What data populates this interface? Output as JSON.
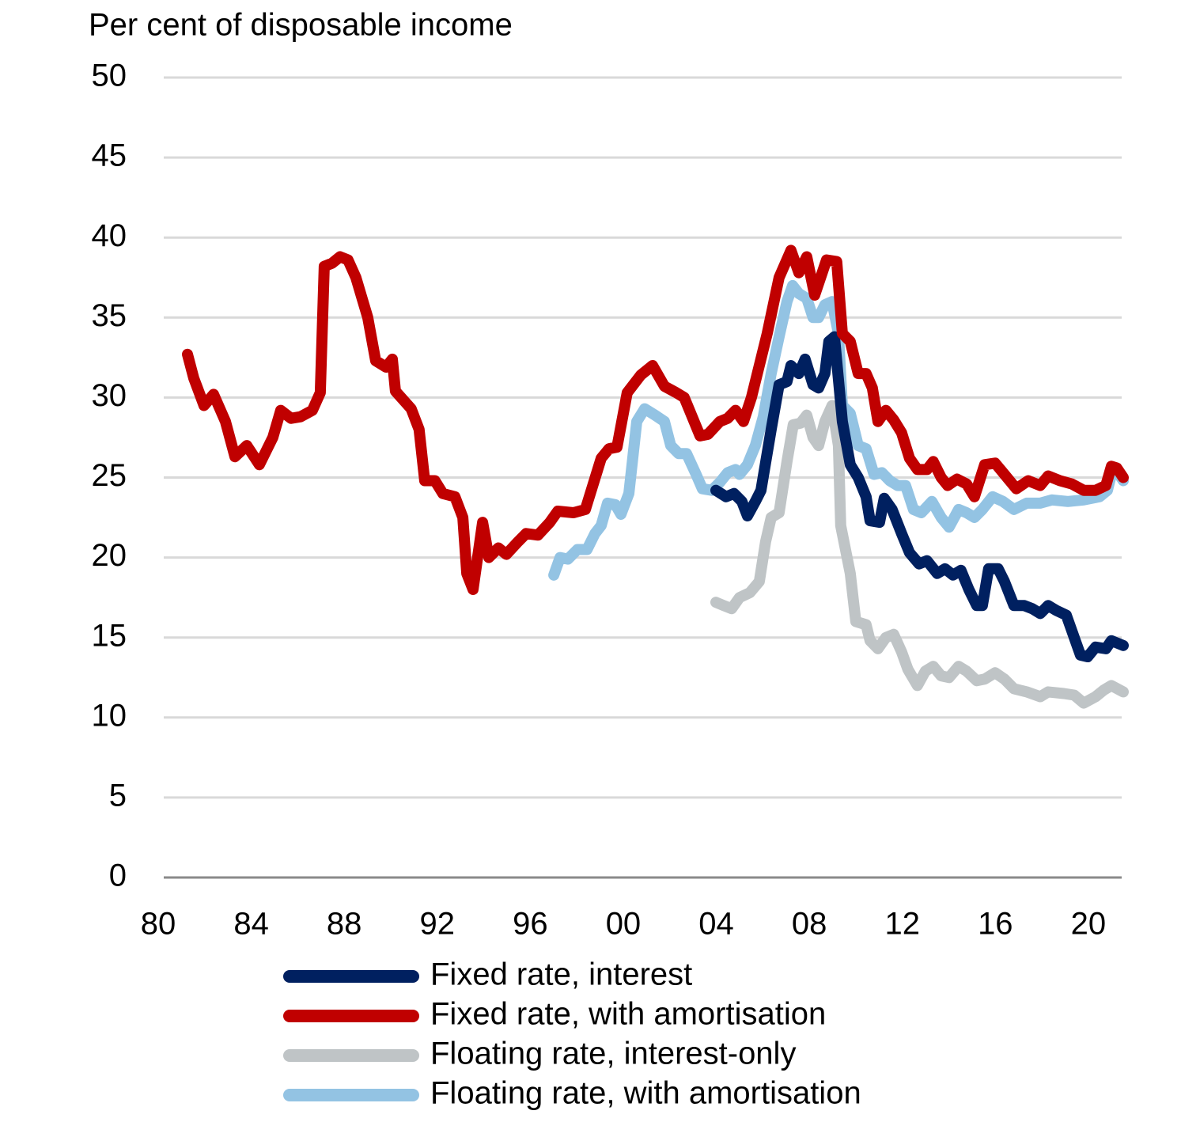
{
  "chart_data": {
    "type": "line",
    "y_axis_label": "Per cent of disposable income",
    "xlim": [
      1980,
      2021.5
    ],
    "ylim": [
      0,
      50
    ],
    "yticks": [
      0,
      5,
      10,
      15,
      20,
      25,
      30,
      35,
      40,
      45,
      50
    ],
    "xticks": [
      {
        "value": 1980,
        "label": "80"
      },
      {
        "value": 1984,
        "label": "84"
      },
      {
        "value": 1988,
        "label": "88"
      },
      {
        "value": 1992,
        "label": "92"
      },
      {
        "value": 1996,
        "label": "96"
      },
      {
        "value": 2000,
        "label": "00"
      },
      {
        "value": 2004,
        "label": "04"
      },
      {
        "value": 2008,
        "label": "08"
      },
      {
        "value": 2012,
        "label": "12"
      },
      {
        "value": 2016,
        "label": "16"
      },
      {
        "value": 2020,
        "label": "20"
      }
    ],
    "grid": true,
    "legend": "bottom",
    "series": [
      {
        "name": "Fixed rate, interest",
        "color": "#002060",
        "x": [
          2003.98,
          2004.42,
          2004.76,
          2005.1,
          2005.34,
          2005.68,
          2005.92,
          2006.36,
          2006.7,
          2007.04,
          2007.21,
          2007.55,
          2007.82,
          2008.16,
          2008.4,
          2008.67,
          2008.84,
          2009.08,
          2009.42,
          2009.76,
          2010.1,
          2010.44,
          2010.61,
          2011.02,
          2011.22,
          2011.56,
          2011.97,
          2012.31,
          2012.72,
          2013.06,
          2013.5,
          2013.84,
          2014.18,
          2014.52,
          2014.86,
          2015.2,
          2015.44,
          2015.71,
          2016.12,
          2016.39,
          2016.8,
          2017.24,
          2017.59,
          2017.93,
          2018.27,
          2018.61,
          2019.05,
          2019.39,
          2019.66,
          2019.97,
          2020.31,
          2020.75,
          2020.99,
          2021.5
        ],
        "values": [
          24.2,
          23.8,
          24.0,
          23.5,
          22.6,
          23.5,
          24.2,
          28.0,
          30.8,
          31.0,
          32.0,
          31.5,
          32.4,
          30.8,
          30.6,
          31.5,
          33.5,
          33.8,
          28.5,
          25.8,
          25.0,
          23.8,
          22.3,
          22.2,
          23.7,
          23.0,
          21.5,
          20.3,
          19.6,
          19.8,
          19.0,
          19.3,
          18.9,
          19.2,
          18.0,
          17.0,
          17.0,
          19.3,
          19.3,
          18.5,
          17.0,
          17.0,
          16.8,
          16.5,
          17.0,
          16.7,
          16.4,
          15.0,
          13.9,
          13.8,
          14.4,
          14.3,
          14.8,
          14.5
        ]
      },
      {
        "name": "Fixed rate, with amortisation",
        "color": "#c00000",
        "x": [
          1981.26,
          1981.53,
          1981.97,
          1982.38,
          1982.89,
          1983.3,
          1983.81,
          1984.35,
          1984.93,
          1985.27,
          1985.71,
          1986.12,
          1986.63,
          1986.97,
          1987.14,
          1987.48,
          1987.82,
          1988.16,
          1988.5,
          1989.01,
          1989.35,
          1989.8,
          1990.07,
          1990.2,
          1990.88,
          1991.22,
          1991.46,
          1991.9,
          1992.24,
          1992.76,
          1993.1,
          1993.27,
          1993.54,
          1993.95,
          1994.22,
          1994.63,
          1994.97,
          1995.48,
          1995.82,
          1996.33,
          1996.84,
          1997.18,
          1997.86,
          1998.37,
          1999.05,
          1999.39,
          1999.73,
          2000.17,
          2000.75,
          2001.26,
          2001.77,
          2002.28,
          2002.62,
          2003.3,
          2003.64,
          2004.15,
          2004.49,
          2004.83,
          2005.17,
          2005.51,
          2006.19,
          2006.7,
          2007.21,
          2007.55,
          2007.89,
          2008.23,
          2008.74,
          2009.18,
          2009.42,
          2009.76,
          2010.1,
          2010.44,
          2010.71,
          2010.95,
          2011.29,
          2011.63,
          2011.97,
          2012.31,
          2012.65,
          2013.06,
          2013.33,
          2013.67,
          2013.95,
          2014.35,
          2014.76,
          2015.1,
          2015.54,
          2015.99,
          2016.39,
          2016.9,
          2017.41,
          2017.93,
          2018.27,
          2018.78,
          2019.29,
          2019.8,
          2020.31,
          2020.75,
          2020.99,
          2021.22,
          2021.5
        ],
        "values": [
          32.7,
          31.2,
          29.5,
          30.2,
          28.5,
          26.3,
          27.0,
          25.8,
          27.5,
          29.2,
          28.7,
          28.8,
          29.2,
          30.3,
          38.2,
          38.4,
          38.8,
          38.6,
          37.5,
          35.0,
          32.3,
          31.9,
          32.4,
          30.4,
          29.3,
          28.0,
          24.8,
          24.8,
          24.0,
          23.8,
          22.5,
          19.0,
          18.0,
          22.2,
          20.0,
          20.6,
          20.2,
          21.0,
          21.5,
          21.4,
          22.2,
          22.9,
          22.8,
          23.0,
          26.2,
          26.8,
          26.9,
          30.3,
          31.4,
          32.0,
          30.7,
          30.3,
          30.0,
          27.6,
          27.7,
          28.5,
          28.7,
          29.2,
          28.5,
          30.0,
          34.0,
          37.5,
          39.2,
          37.8,
          38.8,
          36.4,
          38.6,
          38.5,
          34.0,
          33.5,
          31.5,
          31.5,
          30.6,
          28.5,
          29.2,
          28.6,
          27.8,
          26.2,
          25.5,
          25.5,
          26.0,
          25.0,
          24.5,
          24.9,
          24.6,
          23.8,
          25.8,
          25.9,
          25.2,
          24.3,
          24.8,
          24.5,
          25.1,
          24.8,
          24.6,
          24.2,
          24.2,
          24.5,
          25.7,
          25.6,
          25.0
        ]
      },
      {
        "name": "Floating rate, interest-only",
        "color": "#bfc4c6",
        "x": [
          2003.98,
          2004.32,
          2004.66,
          2005.0,
          2005.44,
          2005.85,
          2006.12,
          2006.36,
          2006.7,
          2007.04,
          2007.31,
          2007.62,
          2007.89,
          2008.16,
          2008.4,
          2008.67,
          2008.98,
          2009.25,
          2009.35,
          2009.76,
          2010.0,
          2010.44,
          2010.61,
          2010.95,
          2011.29,
          2011.63,
          2011.97,
          2012.24,
          2012.65,
          2012.99,
          2013.33,
          2013.67,
          2014.01,
          2014.42,
          2014.76,
          2015.2,
          2015.54,
          2015.99,
          2016.39,
          2016.8,
          2017.35,
          2017.93,
          2018.27,
          2018.95,
          2019.39,
          2019.8,
          2020.31,
          2020.65,
          2020.99,
          2021.5
        ],
        "values": [
          17.2,
          17.0,
          16.8,
          17.5,
          17.8,
          18.5,
          21.0,
          22.5,
          22.8,
          26.0,
          28.3,
          28.4,
          28.9,
          27.5,
          27.0,
          28.5,
          29.5,
          27.0,
          22.0,
          19.0,
          16.0,
          15.8,
          14.8,
          14.3,
          15.0,
          15.2,
          14.1,
          13.0,
          12.0,
          12.9,
          13.2,
          12.6,
          12.5,
          13.2,
          12.9,
          12.3,
          12.4,
          12.8,
          12.4,
          11.8,
          11.6,
          11.3,
          11.6,
          11.5,
          11.4,
          10.9,
          11.3,
          11.7,
          12.0,
          11.6
        ]
      },
      {
        "name": "Floating rate, with amortisation",
        "color": "#93c3e3",
        "x": [
          1997.01,
          1997.28,
          1997.62,
          1998.03,
          1998.44,
          1998.78,
          1999.05,
          1999.32,
          1999.66,
          1999.9,
          2000.24,
          2000.58,
          2000.92,
          2001.36,
          2001.77,
          2002.04,
          2002.38,
          2002.72,
          2003.13,
          2003.4,
          2003.81,
          2004.15,
          2004.49,
          2004.83,
          2005.0,
          2005.34,
          2005.68,
          2006.02,
          2006.36,
          2006.7,
          2007.04,
          2007.28,
          2007.55,
          2007.89,
          2008.16,
          2008.4,
          2008.67,
          2008.98,
          2009.25,
          2009.42,
          2009.76,
          2010.1,
          2010.44,
          2010.78,
          2011.12,
          2011.46,
          2011.8,
          2012.14,
          2012.48,
          2012.82,
          2013.27,
          2013.67,
          2014.01,
          2014.42,
          2014.76,
          2015.1,
          2015.44,
          2015.88,
          2016.33,
          2016.8,
          2017.35,
          2017.93,
          2018.44,
          2019.12,
          2019.8,
          2020.48,
          2020.82,
          2020.99,
          2021.22,
          2021.5
        ],
        "values": [
          18.9,
          20.0,
          19.9,
          20.5,
          20.5,
          21.5,
          22.0,
          23.4,
          23.3,
          22.7,
          24.0,
          28.5,
          29.3,
          28.9,
          28.5,
          27.0,
          26.5,
          26.5,
          25.2,
          24.3,
          24.2,
          24.7,
          25.3,
          25.5,
          25.2,
          25.8,
          27.0,
          28.8,
          31.5,
          33.8,
          36.0,
          37.0,
          36.5,
          36.2,
          35.0,
          35.0,
          35.8,
          36.0,
          34.0,
          29.5,
          29.0,
          27.0,
          26.8,
          25.2,
          25.3,
          24.8,
          24.5,
          24.5,
          23.0,
          22.8,
          23.5,
          22.5,
          21.9,
          23.0,
          22.8,
          22.5,
          23.0,
          23.8,
          23.5,
          23.0,
          23.4,
          23.4,
          23.6,
          23.5,
          23.6,
          23.8,
          24.2,
          25.2,
          25.4,
          24.8
        ]
      }
    ]
  }
}
